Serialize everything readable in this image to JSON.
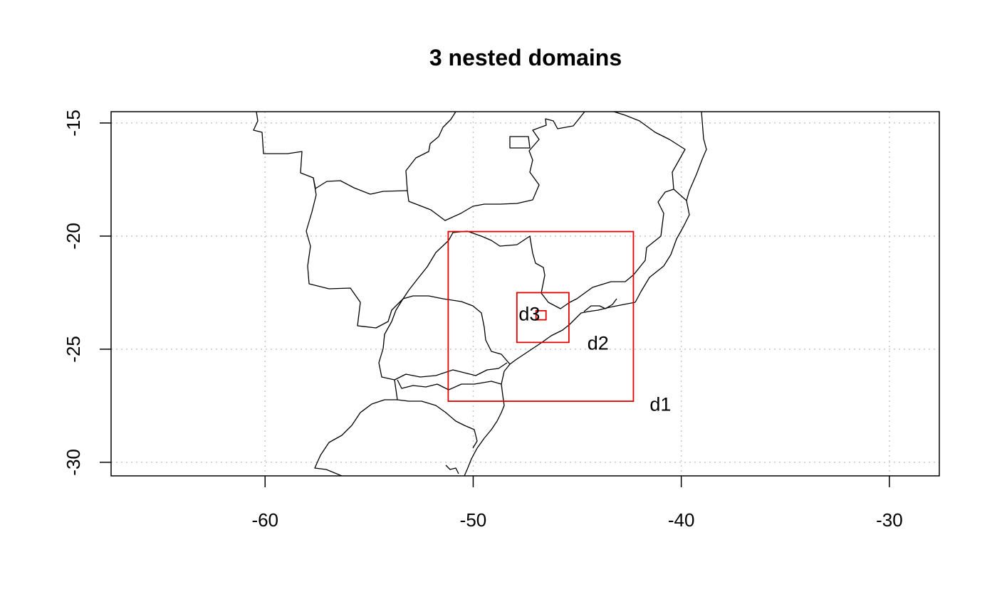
{
  "chart_data": {
    "type": "map",
    "title": "3 nested domains",
    "xlim": [
      -67.4,
      -27.6
    ],
    "ylim": [
      -30.6,
      -14.5
    ],
    "x_ticks": [
      -60,
      -50,
      -40,
      -30
    ],
    "y_ticks": [
      -15,
      -20,
      -25,
      -30
    ],
    "grid": true,
    "domains": [
      {
        "name": "d1",
        "lon_min": -51.2,
        "lon_max": -42.3,
        "lat_min": -27.3,
        "lat_max": -19.8,
        "label_lon": -41.0,
        "label_lat": -27.5
      },
      {
        "name": "d2",
        "lon_min": -47.9,
        "lon_max": -45.4,
        "lat_min": -24.7,
        "lat_max": -22.5,
        "label_lon": -44.0,
        "label_lat": -24.8
      },
      {
        "name": "d3",
        "lon_min": -46.98,
        "lon_max": -46.5,
        "lat_min": -23.7,
        "lat_max": -23.3,
        "label_lon": -47.3,
        "label_lat": -23.5
      }
    ],
    "colors": {
      "domains": "#e00000",
      "borders": "#000000",
      "grid": "#c8c8c8"
    }
  }
}
